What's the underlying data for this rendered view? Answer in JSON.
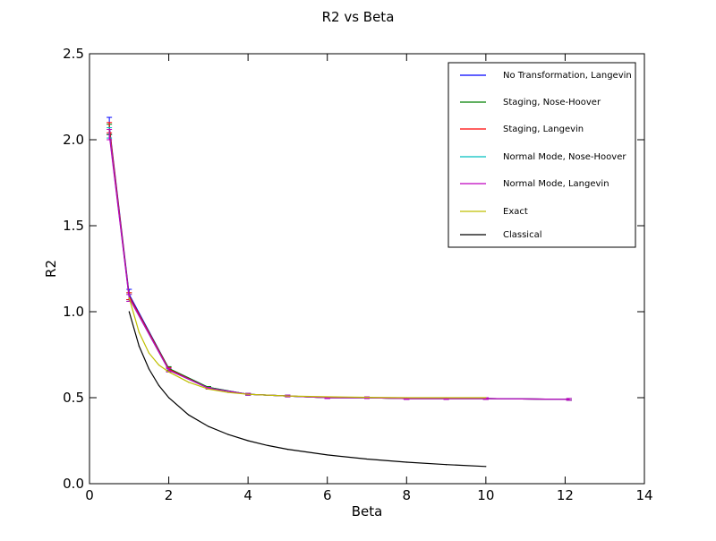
{
  "chart_data": {
    "type": "line",
    "title": "R2 vs Beta",
    "xlabel": "Beta",
    "ylabel": "R2",
    "xlim": [
      0,
      14
    ],
    "ylim": [
      0.0,
      2.5
    ],
    "xticks": [
      0,
      2,
      4,
      6,
      8,
      10,
      12,
      14
    ],
    "yticks": [
      0.0,
      0.5,
      1.0,
      1.5,
      2.0,
      2.5
    ],
    "xtick_labels": [
      "0",
      "2",
      "4",
      "6",
      "8",
      "10",
      "12",
      "14"
    ],
    "ytick_labels": [
      "0.0",
      "0.5",
      "1.0",
      "1.5",
      "2.0",
      "2.5"
    ],
    "grid": false,
    "legend_position": "top-right",
    "series": [
      {
        "name": "No Transformation, Langevin",
        "color": "#0000ff",
        "errorbars": true,
        "x": [
          0.5,
          1,
          2,
          3,
          4,
          5,
          6,
          7,
          8,
          9,
          10,
          12.1
        ],
        "y": [
          2.08,
          1.1,
          0.67,
          0.56,
          0.52,
          0.51,
          0.5,
          0.5,
          0.495,
          0.495,
          0.495,
          0.49
        ],
        "err": [
          0.05,
          0.03,
          0.01,
          0.005,
          0.005,
          0.005,
          0.005,
          0.005,
          0.005,
          0.005,
          0.005,
          0.005
        ]
      },
      {
        "name": "Staging, Nose-Hoover",
        "color": "#008000",
        "errorbars": true,
        "x": [
          0.5,
          1,
          2,
          3,
          4,
          5,
          6,
          7,
          8,
          9,
          10,
          12.1
        ],
        "y": [
          2.06,
          1.09,
          0.67,
          0.56,
          0.52,
          0.51,
          0.5,
          0.5,
          0.495,
          0.495,
          0.495,
          0.49
        ],
        "err": [
          0.03,
          0.02,
          0.01,
          0.005,
          0.005,
          0.005,
          0.005,
          0.005,
          0.005,
          0.005,
          0.005,
          0.005
        ]
      },
      {
        "name": "Staging, Langevin",
        "color": "#ff0000",
        "errorbars": true,
        "x": [
          0.5,
          1,
          2,
          3,
          4,
          5,
          6,
          7,
          8,
          9,
          10,
          12.1
        ],
        "y": [
          2.07,
          1.09,
          0.665,
          0.555,
          0.52,
          0.51,
          0.5,
          0.5,
          0.495,
          0.495,
          0.495,
          0.49
        ],
        "err": [
          0.03,
          0.02,
          0.01,
          0.005,
          0.005,
          0.005,
          0.005,
          0.005,
          0.005,
          0.005,
          0.005,
          0.005
        ]
      },
      {
        "name": "Normal Mode, Nose-Hoover",
        "color": "#00bfbf",
        "errorbars": true,
        "x": [
          0.5,
          1,
          2,
          3,
          4,
          5,
          6,
          7,
          8,
          9,
          10,
          12.1
        ],
        "y": [
          2.04,
          1.08,
          0.66,
          0.555,
          0.52,
          0.51,
          0.5,
          0.5,
          0.495,
          0.495,
          0.495,
          0.49
        ],
        "err": [
          0.03,
          0.02,
          0.01,
          0.005,
          0.005,
          0.005,
          0.005,
          0.005,
          0.005,
          0.005,
          0.005,
          0.005
        ]
      },
      {
        "name": "Normal Mode, Langevin",
        "color": "#bf00bf",
        "errorbars": true,
        "x": [
          0.5,
          1,
          2,
          3,
          4,
          5,
          6,
          7,
          8,
          9,
          10,
          12.1
        ],
        "y": [
          2.03,
          1.08,
          0.66,
          0.555,
          0.52,
          0.51,
          0.5,
          0.5,
          0.495,
          0.495,
          0.495,
          0.49
        ],
        "err": [
          0.03,
          0.02,
          0.01,
          0.005,
          0.005,
          0.005,
          0.005,
          0.005,
          0.005,
          0.005,
          0.005,
          0.005
        ]
      },
      {
        "name": "Exact",
        "color": "#bfbf00",
        "errorbars": false,
        "x": [
          1,
          1.25,
          1.5,
          1.75,
          2,
          2.5,
          3,
          3.5,
          4,
          5,
          6,
          7,
          8,
          9,
          10
        ],
        "y": [
          1.08,
          0.88,
          0.76,
          0.69,
          0.65,
          0.59,
          0.55,
          0.53,
          0.52,
          0.51,
          0.505,
          0.502,
          0.5,
          0.5,
          0.5
        ]
      },
      {
        "name": "Classical",
        "color": "#000000",
        "errorbars": false,
        "x": [
          1,
          1.25,
          1.5,
          1.75,
          2,
          2.5,
          3,
          3.5,
          4,
          4.5,
          5,
          6,
          7,
          8,
          9,
          10
        ],
        "y": [
          1.0,
          0.8,
          0.667,
          0.571,
          0.5,
          0.4,
          0.333,
          0.286,
          0.25,
          0.222,
          0.2,
          0.167,
          0.143,
          0.125,
          0.111,
          0.1
        ]
      }
    ]
  }
}
